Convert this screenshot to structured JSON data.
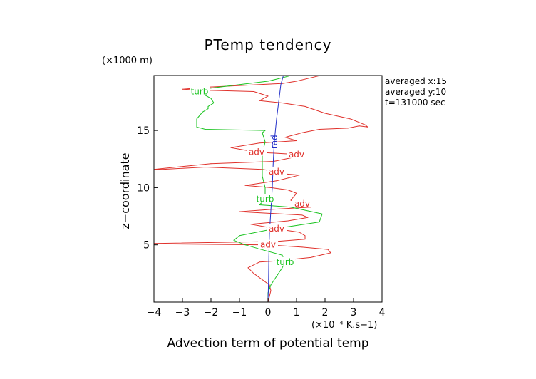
{
  "chart_data": {
    "type": "line",
    "title": "PTemp tendency",
    "xlabel": "Advection term of potential temp",
    "ylabel": "z−coordinate",
    "x_unit": "(×10⁻⁴ K.s−1)",
    "y_unit": "(×1000 m)",
    "xlim": [
      -4,
      4
    ],
    "ylim": [
      0,
      19.8
    ],
    "xticks": [
      -4,
      -3,
      -2,
      -1,
      0,
      1,
      2,
      3,
      4
    ],
    "yticks": [
      5,
      10,
      15
    ],
    "xtick_labels": [
      "−4",
      "−3",
      "−2",
      "−1",
      "0",
      "1",
      "2",
      "3",
      "4"
    ],
    "ytick_labels": [
      "5",
      "10",
      "15"
    ],
    "annotations": [
      "averaged  x:15",
      "averaged  y:10",
      "t=131000 sec"
    ],
    "grid": false,
    "series": [
      {
        "name": "adv",
        "color": "#e0312b",
        "x": [
          0,
          0.05,
          0.1,
          0.05,
          -0.5,
          -0.7,
          -0.3,
          0.3,
          1.5,
          2.2,
          2.1,
          1.2,
          0,
          -4.5,
          0.3,
          1.3,
          1.3,
          1.1,
          0.3,
          -0.6,
          0.7,
          1.4,
          1.2,
          -1.0,
          0.1,
          1.5,
          1.2,
          0.8,
          0.9,
          1.0,
          0.7,
          0.1,
          -0.8,
          0.3,
          0.8,
          1.1,
          0.6,
          0.3,
          -0.2,
          -2.2,
          -4.4,
          -2.0,
          0.2,
          0.8,
          1.0,
          -0.4,
          -1.3,
          -0.3,
          1.0,
          0.6,
          0.9,
          1.2,
          1.8,
          2.8,
          3.2,
          3.5,
          3.4,
          2.9,
          2.0,
          1.3,
          0.5,
          -0.3,
          0,
          -0.5,
          -2.0,
          -3.0,
          -2.0,
          0.5,
          1.0,
          1.5,
          2.0
        ],
        "y": [
          0,
          0.5,
          1.0,
          1.5,
          2.5,
          3.0,
          3.5,
          3.6,
          3.9,
          4.3,
          4.6,
          4.8,
          5.0,
          5.1,
          5.3,
          5.5,
          5.8,
          6.1,
          6.4,
          6.8,
          7.1,
          7.4,
          7.6,
          7.9,
          8.1,
          8.3,
          8.6,
          8.9,
          9.2,
          9.5,
          9.8,
          10.0,
          10.2,
          10.6,
          10.9,
          11.1,
          11.2,
          11.4,
          11.6,
          11.8,
          11.5,
          12.1,
          12.3,
          12.6,
          12.9,
          13.1,
          13.5,
          13.9,
          14.1,
          14.4,
          14.6,
          14.8,
          15.1,
          15.2,
          15.4,
          15.3,
          15.5,
          16.0,
          16.5,
          17.1,
          17.4,
          17.6,
          18.0,
          18.4,
          18.5,
          18.6,
          18.8,
          19.1,
          19.3,
          19.6,
          19.9
        ]
      },
      {
        "name": "turb",
        "color": "#19c31f",
        "x": [
          0,
          0,
          0.1,
          0.5,
          0.6,
          0.5,
          -0.1,
          -0.8,
          -1.2,
          -1.0,
          0.2,
          1.8,
          1.9,
          0.8,
          -0.3,
          -0.1,
          -0.1,
          -0.2,
          -0.2,
          -0.2,
          -0.1,
          -0.2,
          -0.1,
          -2.2,
          -2.5,
          -2.5,
          -2.3,
          -2.1,
          -2.1,
          -1.9,
          -2.0,
          -2.3,
          -2.4,
          -2.0,
          -1.0,
          0,
          0.5,
          0.8,
          1.0
        ],
        "y": [
          0,
          0.8,
          1.5,
          3.0,
          3.5,
          4.1,
          4.5,
          5.0,
          5.4,
          5.8,
          6.4,
          7.0,
          7.7,
          8.3,
          8.5,
          9.0,
          10.0,
          11.0,
          12.0,
          13.0,
          14.0,
          14.8,
          15.0,
          15.1,
          15.3,
          16.0,
          16.6,
          16.9,
          17.1,
          17.4,
          17.8,
          18.2,
          18.4,
          18.7,
          19.0,
          19.3,
          19.6,
          19.8,
          19.9
        ]
      },
      {
        "name": "rad",
        "color": "#2330c8",
        "x": [
          0,
          0.02,
          0.03,
          0.05,
          0.1,
          0.15,
          0.18,
          0.22,
          0.3,
          0.4,
          0.45,
          0.55
        ],
        "y": [
          0,
          2,
          4,
          6,
          8,
          10,
          12,
          14,
          16,
          18,
          19,
          19.9
        ]
      }
    ],
    "curve_labels": [
      {
        "text": "adv",
        "series": "adv"
      },
      {
        "text": "adv",
        "series": "adv"
      },
      {
        "text": "adv",
        "series": "adv"
      },
      {
        "text": "adv",
        "series": "adv"
      },
      {
        "text": "adv",
        "series": "adv"
      },
      {
        "text": "adv",
        "series": "adv"
      },
      {
        "text": "turb",
        "series": "turb"
      },
      {
        "text": "turb",
        "series": "turb"
      },
      {
        "text": "turb",
        "series": "turb"
      },
      {
        "text": "rad",
        "series": "rad"
      }
    ]
  }
}
